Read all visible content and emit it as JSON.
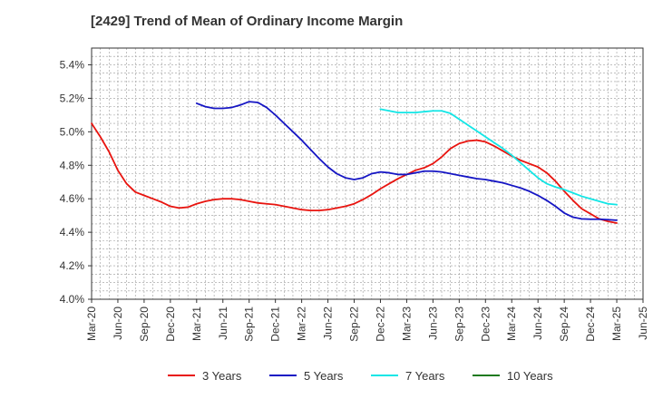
{
  "chart_data": {
    "type": "line",
    "title": "[2429]  Trend of Mean of Ordinary Income Margin",
    "x_tick_labels": [
      "Mar-20",
      "Jun-20",
      "Sep-20",
      "Dec-20",
      "Mar-21",
      "Jun-21",
      "Sep-21",
      "Dec-21",
      "Mar-22",
      "Jun-22",
      "Sep-22",
      "Dec-22",
      "Mar-23",
      "Jun-23",
      "Sep-23",
      "Dec-23",
      "Mar-24",
      "Jun-24",
      "Sep-24",
      "Dec-24",
      "Mar-25",
      "Jun-25"
    ],
    "y_tick_labels": [
      "4.0%",
      "4.2%",
      "4.4%",
      "4.6%",
      "4.8%",
      "5.0%",
      "5.2%",
      "5.4%"
    ],
    "ylim": [
      4.0,
      5.5
    ],
    "grid": true,
    "legend_position": "bottom",
    "series": [
      {
        "name": "3 Years",
        "color": "#e8140f",
        "points": [
          [
            "Mar-20",
            5.05
          ],
          [
            "Apr-20",
            4.97
          ],
          [
            "May-20",
            4.88
          ],
          [
            "Jun-20",
            4.77
          ],
          [
            "Jul-20",
            4.69
          ],
          [
            "Aug-20",
            4.64
          ],
          [
            "Sep-20",
            4.62
          ],
          [
            "Oct-20",
            4.6
          ],
          [
            "Nov-20",
            4.58
          ],
          [
            "Dec-20",
            4.555
          ],
          [
            "Jan-21",
            4.545
          ],
          [
            "Feb-21",
            4.55
          ],
          [
            "Mar-21",
            4.57
          ],
          [
            "Apr-21",
            4.585
          ],
          [
            "May-21",
            4.595
          ],
          [
            "Jun-21",
            4.6
          ],
          [
            "Jul-21",
            4.6
          ],
          [
            "Aug-21",
            4.595
          ],
          [
            "Sep-21",
            4.585
          ],
          [
            "Oct-21",
            4.575
          ],
          [
            "Nov-21",
            4.57
          ],
          [
            "Dec-21",
            4.565
          ],
          [
            "Jan-22",
            4.555
          ],
          [
            "Feb-22",
            4.545
          ],
          [
            "Mar-22",
            4.535
          ],
          [
            "Apr-22",
            4.53
          ],
          [
            "May-22",
            4.53
          ],
          [
            "Jun-22",
            4.535
          ],
          [
            "Jul-22",
            4.545
          ],
          [
            "Aug-22",
            4.555
          ],
          [
            "Sep-22",
            4.57
          ],
          [
            "Oct-22",
            4.595
          ],
          [
            "Nov-22",
            4.625
          ],
          [
            "Dec-22",
            4.66
          ],
          [
            "Jan-23",
            4.69
          ],
          [
            "Feb-23",
            4.72
          ],
          [
            "Mar-23",
            4.745
          ],
          [
            "Apr-23",
            4.77
          ],
          [
            "May-23",
            4.785
          ],
          [
            "Jun-23",
            4.81
          ],
          [
            "Jul-23",
            4.85
          ],
          [
            "Aug-23",
            4.9
          ],
          [
            "Sep-23",
            4.93
          ],
          [
            "Oct-23",
            4.945
          ],
          [
            "Nov-23",
            4.95
          ],
          [
            "Dec-23",
            4.94
          ],
          [
            "Jan-24",
            4.915
          ],
          [
            "Feb-24",
            4.885
          ],
          [
            "Mar-24",
            4.855
          ],
          [
            "Apr-24",
            4.83
          ],
          [
            "May-24",
            4.81
          ],
          [
            "Jun-24",
            4.79
          ],
          [
            "Jul-24",
            4.755
          ],
          [
            "Aug-24",
            4.705
          ],
          [
            "Sep-24",
            4.645
          ],
          [
            "Oct-24",
            4.59
          ],
          [
            "Nov-24",
            4.54
          ],
          [
            "Dec-24",
            4.51
          ],
          [
            "Jan-25",
            4.48
          ],
          [
            "Feb-25",
            4.465
          ],
          [
            "Mar-25",
            4.455
          ]
        ]
      },
      {
        "name": "5 Years",
        "color": "#1515c4",
        "points": [
          [
            "Mar-21",
            5.17
          ],
          [
            "Apr-21",
            5.15
          ],
          [
            "May-21",
            5.14
          ],
          [
            "Jun-21",
            5.14
          ],
          [
            "Jul-21",
            5.145
          ],
          [
            "Aug-21",
            5.16
          ],
          [
            "Sep-21",
            5.18
          ],
          [
            "Oct-21",
            5.175
          ],
          [
            "Nov-21",
            5.145
          ],
          [
            "Dec-21",
            5.1
          ],
          [
            "Jan-22",
            5.05
          ],
          [
            "Feb-22",
            5.0
          ],
          [
            "Mar-22",
            4.95
          ],
          [
            "Apr-22",
            4.895
          ],
          [
            "May-22",
            4.84
          ],
          [
            "Jun-22",
            4.79
          ],
          [
            "Jul-22",
            4.75
          ],
          [
            "Aug-22",
            4.725
          ],
          [
            "Sep-22",
            4.715
          ],
          [
            "Oct-22",
            4.725
          ],
          [
            "Nov-22",
            4.75
          ],
          [
            "Dec-22",
            4.76
          ],
          [
            "Jan-23",
            4.755
          ],
          [
            "Feb-23",
            4.745
          ],
          [
            "Mar-23",
            4.745
          ],
          [
            "Apr-23",
            4.755
          ],
          [
            "May-23",
            4.765
          ],
          [
            "Jun-23",
            4.765
          ],
          [
            "Jul-23",
            4.76
          ],
          [
            "Aug-23",
            4.75
          ],
          [
            "Sep-23",
            4.74
          ],
          [
            "Oct-23",
            4.73
          ],
          [
            "Nov-23",
            4.72
          ],
          [
            "Dec-23",
            4.715
          ],
          [
            "Jan-24",
            4.705
          ],
          [
            "Feb-24",
            4.695
          ],
          [
            "Mar-24",
            4.68
          ],
          [
            "Apr-24",
            4.665
          ],
          [
            "May-24",
            4.645
          ],
          [
            "Jun-24",
            4.62
          ],
          [
            "Jul-24",
            4.59
          ],
          [
            "Aug-24",
            4.555
          ],
          [
            "Sep-24",
            4.515
          ],
          [
            "Oct-24",
            4.49
          ],
          [
            "Nov-24",
            4.48
          ],
          [
            "Dec-24",
            4.478
          ],
          [
            "Jan-25",
            4.478
          ],
          [
            "Feb-25",
            4.475
          ],
          [
            "Mar-25",
            4.472
          ]
        ]
      },
      {
        "name": "7 Years",
        "color": "#12e6e6",
        "points": [
          [
            "Dec-22",
            5.135
          ],
          [
            "Jan-23",
            5.125
          ],
          [
            "Feb-23",
            5.115
          ],
          [
            "Mar-23",
            5.115
          ],
          [
            "Apr-23",
            5.115
          ],
          [
            "May-23",
            5.12
          ],
          [
            "Jun-23",
            5.125
          ],
          [
            "Jul-23",
            5.125
          ],
          [
            "Aug-23",
            5.11
          ],
          [
            "Sep-23",
            5.075
          ],
          [
            "Oct-23",
            5.04
          ],
          [
            "Nov-23",
            5.005
          ],
          [
            "Dec-23",
            4.97
          ],
          [
            "Jan-24",
            4.935
          ],
          [
            "Feb-24",
            4.9
          ],
          [
            "Mar-24",
            4.86
          ],
          [
            "Apr-24",
            4.815
          ],
          [
            "May-24",
            4.77
          ],
          [
            "Jun-24",
            4.725
          ],
          [
            "Jul-24",
            4.69
          ],
          [
            "Aug-24",
            4.67
          ],
          [
            "Sep-24",
            4.655
          ],
          [
            "Oct-24",
            4.635
          ],
          [
            "Nov-24",
            4.615
          ],
          [
            "Dec-24",
            4.6
          ],
          [
            "Jan-25",
            4.585
          ],
          [
            "Feb-25",
            4.57
          ],
          [
            "Mar-25",
            4.565
          ]
        ]
      },
      {
        "name": "10 Years",
        "color": "#1f7a1f",
        "points": []
      }
    ]
  }
}
